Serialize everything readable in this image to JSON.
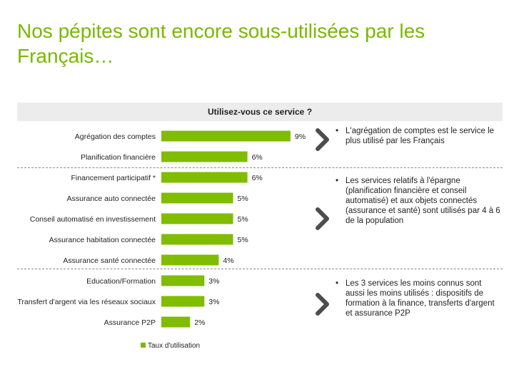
{
  "title": "Nos pépites sont encore sous-utilisées par les Français…",
  "header": "Utilisez-vous ce service ?",
  "legend_label": "Taux d'utilisation",
  "colors": {
    "accent": "#7ab800",
    "bar": "#80bc00"
  },
  "notes": [
    "L'agrégation de comptes est le service le plus utilisé par les Français",
    "Les services relatifs à l'épargne (planification financière et conseil automatisé) et aux objets connectés (assurance et santé) sont utilisés par 4 à 6 de la population",
    "Les 3 services les moins connus sont aussi les moins utilisés : dispositifs de formation à la finance, transferts d'argent et assurance P2P"
  ],
  "chart_data": {
    "type": "bar",
    "orientation": "horizontal",
    "title": "Utilisez-vous ce service ?",
    "categories": [
      "Agrégation des comptes",
      "Planification financière",
      "Financement participatif *",
      "Assurance auto connectée",
      "Conseil automatisé en investissement",
      "Assurance habitation connectée",
      "Assurance santé connectée",
      "Education/Formation",
      "Transfert d'argent via les réseaux sociaux",
      "Assurance P2P"
    ],
    "values": [
      9,
      6,
      6,
      5,
      5,
      5,
      4,
      3,
      3,
      2
    ],
    "value_labels": [
      "9%",
      "6%",
      "6%",
      "5%",
      "5%",
      "5%",
      "4%",
      "3%",
      "3%",
      "2%"
    ],
    "series": [
      {
        "name": "Taux d'utilisation",
        "values": [
          9,
          6,
          6,
          5,
          5,
          5,
          4,
          3,
          3,
          2
        ]
      }
    ],
    "groups": [
      [
        0,
        1
      ],
      [
        2,
        3,
        4,
        5,
        6
      ],
      [
        7,
        8,
        9
      ]
    ],
    "legend": "bottom-center",
    "grid": false
  }
}
